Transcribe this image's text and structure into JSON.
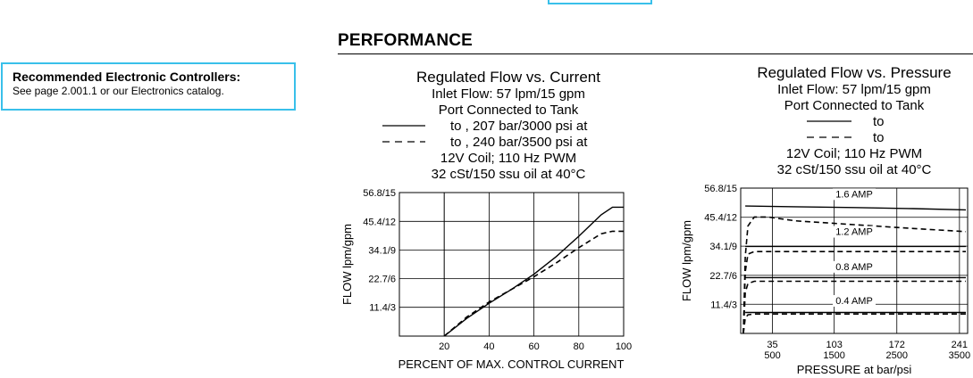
{
  "section": {
    "title": "PERFORMANCE"
  },
  "controllers": {
    "title": "Recommended Electronic Controllers:",
    "note": "See page 2.001.1 or our Electronics catalog."
  },
  "chart_data": [
    {
      "type": "line",
      "title": "Regulated Flow vs. Current",
      "subtitle_lines": [
        "Inlet Flow: 57 lpm/15 gpm",
        "Port      Connected to Tank"
      ],
      "legend": [
        {
          "style": "solid",
          "text": "to    , 207 bar/3000 psi at"
        },
        {
          "style": "dashed",
          "text": "to    , 240 bar/3500 psi at"
        }
      ],
      "conditions": [
        "12V Coil; 110 Hz PWM",
        "32 cSt/150 ssu oil at 40°C"
      ],
      "xlabel": "PERCENT OF MAX. CONTROL CURRENT",
      "ylabel": "FLOW lpm/gpm",
      "xlim": [
        0,
        100
      ],
      "ylim": [
        0,
        56.8
      ],
      "x_ticks": [
        20,
        40,
        60,
        80,
        100
      ],
      "y_ticks": [
        {
          "value": 11.4,
          "label": "11.4/3"
        },
        {
          "value": 22.7,
          "label": "22.7/6"
        },
        {
          "value": 34.1,
          "label": "34.1/9"
        },
        {
          "value": 45.4,
          "label": "45.4/12"
        },
        {
          "value": 56.8,
          "label": "56.8/15"
        }
      ],
      "grid": true,
      "series": [
        {
          "style": "solid",
          "x": [
            20,
            30,
            40,
            50,
            60,
            70,
            80,
            90,
            95,
            100
          ],
          "y": [
            0,
            7,
            13,
            18.5,
            24.5,
            31.5,
            39.5,
            48,
            51,
            51
          ]
        },
        {
          "style": "dashed",
          "x": [
            20,
            30,
            40,
            50,
            60,
            70,
            80,
            90,
            95,
            100
          ],
          "y": [
            0,
            7.5,
            13.5,
            18.5,
            23.5,
            29,
            35,
            40.5,
            41.5,
            41.5
          ]
        }
      ]
    },
    {
      "type": "line",
      "title": "Regulated Flow vs. Pressure",
      "subtitle_lines": [
        "Inlet Flow: 57 lpm/15 gpm",
        "Port      Connected to Tank"
      ],
      "legend": [
        {
          "style": "solid",
          "text": "to"
        },
        {
          "style": "dashed",
          "text": "to"
        }
      ],
      "conditions": [
        "12V Coil; 110 Hz PWM",
        "32 cSt/150 ssu oil at 40°C"
      ],
      "xlabel": "PRESSURE at      bar/psi",
      "ylabel": "FLOW lpm/gpm",
      "xlim": [
        0,
        250
      ],
      "ylim": [
        0,
        56.8
      ],
      "x_ticks": [
        {
          "value": 35,
          "label": "35",
          "label2": "500"
        },
        {
          "value": 103,
          "label": "103",
          "label2": "1500"
        },
        {
          "value": 172,
          "label": "172",
          "label2": "2500"
        },
        {
          "value": 241,
          "label": "241",
          "label2": "3500"
        }
      ],
      "y_ticks": [
        {
          "value": 11.4,
          "label": "11.4/3"
        },
        {
          "value": 22.7,
          "label": "22.7/6"
        },
        {
          "value": 34.1,
          "label": "34.1/9"
        },
        {
          "value": 45.4,
          "label": "45.4/12"
        },
        {
          "value": 56.8,
          "label": "56.8/15"
        }
      ],
      "grid": true,
      "annotations": [
        {
          "text": "1.6 AMP",
          "x": 125,
          "y": 53.2
        },
        {
          "text": "1.2 AMP",
          "x": 125,
          "y": 38.5
        },
        {
          "text": "0.8 AMP",
          "x": 125,
          "y": 24.8
        },
        {
          "text": "0.4 AMP",
          "x": 125,
          "y": 11.5
        }
      ],
      "series": [
        {
          "name": "1.6 AMP",
          "style": "solid",
          "x": [
            5,
            60,
            125,
            190,
            248
          ],
          "y": [
            49.8,
            49.5,
            49.2,
            48.8,
            48.3
          ]
        },
        {
          "name": "1.2 AMP",
          "style": "solid",
          "x": [
            5,
            60,
            125,
            190,
            248
          ],
          "y": [
            34,
            34,
            34,
            34,
            34
          ]
        },
        {
          "name": "0.8 AMP",
          "style": "solid",
          "x": [
            5,
            60,
            125,
            190,
            248
          ],
          "y": [
            21.8,
            21.8,
            21.8,
            21.8,
            21.8
          ]
        },
        {
          "name": "0.4 AMP",
          "style": "solid",
          "x": [
            5,
            60,
            125,
            190,
            248
          ],
          "y": [
            8.2,
            8.2,
            8.2,
            8.2,
            8.2
          ]
        },
        {
          "name": "1.6 AMP",
          "style": "dashed",
          "x": [
            3,
            5,
            8,
            15,
            30,
            60,
            125,
            190,
            248
          ],
          "y": [
            0,
            30,
            42,
            45.5,
            45.5,
            44,
            42.5,
            41,
            39.8
          ]
        },
        {
          "name": "1.2 AMP",
          "style": "dashed",
          "x": [
            3,
            5,
            8,
            15,
            30,
            60,
            125,
            190,
            248
          ],
          "y": [
            0,
            24,
            31,
            32,
            32,
            32,
            32,
            32,
            32
          ]
        },
        {
          "name": "0.8 AMP",
          "style": "dashed",
          "x": [
            3,
            5,
            8,
            15,
            30,
            60,
            125,
            190,
            248
          ],
          "y": [
            0,
            16,
            19.5,
            20.4,
            20.4,
            20.4,
            20.4,
            20.4,
            20.4
          ]
        },
        {
          "name": "0.4 AMP",
          "style": "dashed",
          "x": [
            3,
            5,
            8,
            15,
            30,
            60,
            125,
            190,
            248
          ],
          "y": [
            0,
            6,
            7.3,
            7.6,
            7.6,
            7.6,
            7.6,
            7.6,
            7.6
          ]
        }
      ]
    }
  ]
}
